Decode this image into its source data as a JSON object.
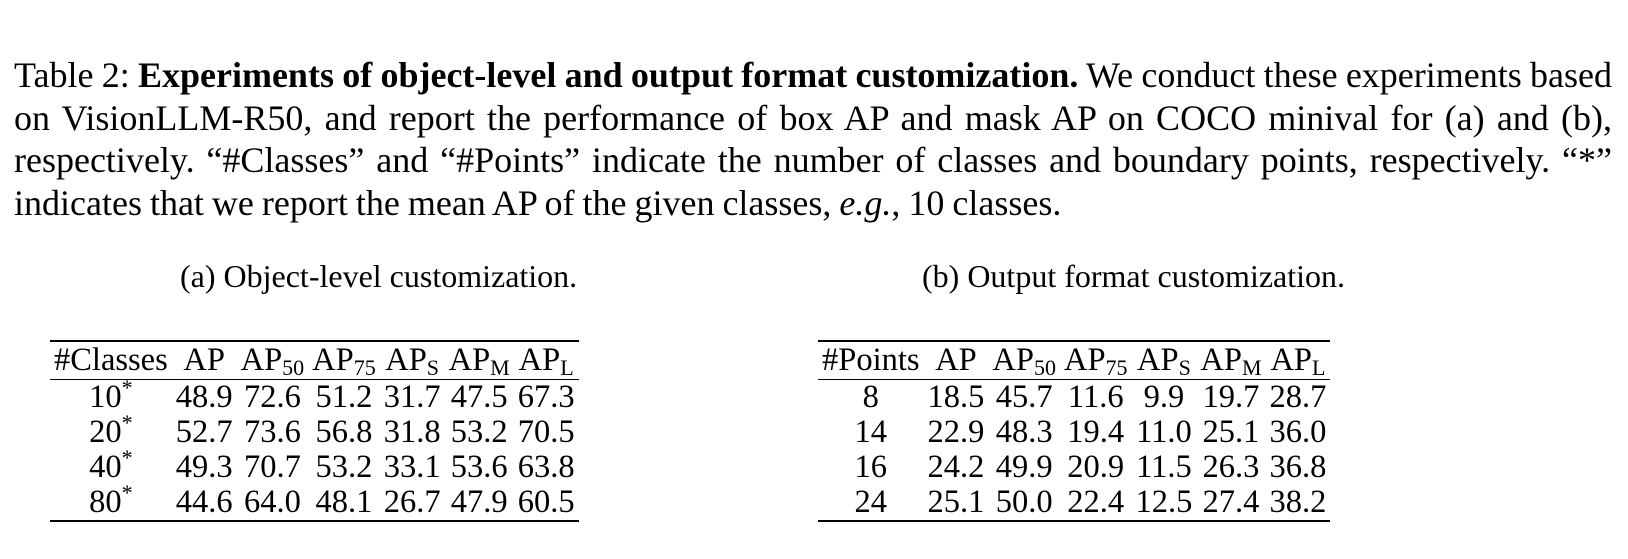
{
  "caption": {
    "label": "Table 2: ",
    "title": "Experiments of object-level and output format customization.",
    "text1": " We conduct these experiments based on VisionLLM-R50, and report the performance of box AP and mask AP on COCO minival for (a) and (b), respectively. “#Classes” and “#Points” indicate the number of classes and boundary points, respectively. “*” indicates that we report the mean AP of the given classes, ",
    "eg": "e.g.",
    "text2": ", 10 classes."
  },
  "table_a": {
    "subcaption": "(a) Object-level customization.",
    "headers": [
      {
        "base": "#Classes",
        "sub": ""
      },
      {
        "base": "AP",
        "sub": ""
      },
      {
        "base": "AP",
        "sub": "50"
      },
      {
        "base": "AP",
        "sub": "75"
      },
      {
        "base": "AP",
        "sub": "S"
      },
      {
        "base": "AP",
        "sub": "M"
      },
      {
        "base": "AP",
        "sub": "L"
      }
    ],
    "rows": [
      {
        "key": "10",
        "mark": "*",
        "values": [
          "48.9",
          "72.6",
          "51.2",
          "31.7",
          "47.5",
          "67.3"
        ]
      },
      {
        "key": "20",
        "mark": "*",
        "values": [
          "52.7",
          "73.6",
          "56.8",
          "31.8",
          "53.2",
          "70.5"
        ]
      },
      {
        "key": "40",
        "mark": "*",
        "values": [
          "49.3",
          "70.7",
          "53.2",
          "33.1",
          "53.6",
          "63.8"
        ]
      },
      {
        "key": "80",
        "mark": "*",
        "values": [
          "44.6",
          "64.0",
          "48.1",
          "26.7",
          "47.9",
          "60.5"
        ]
      }
    ]
  },
  "table_b": {
    "subcaption": "(b) Output format customization.",
    "headers": [
      {
        "base": "#Points",
        "sub": ""
      },
      {
        "base": "AP",
        "sub": ""
      },
      {
        "base": "AP",
        "sub": "50"
      },
      {
        "base": "AP",
        "sub": "75"
      },
      {
        "base": "AP",
        "sub": "S"
      },
      {
        "base": "AP",
        "sub": "M"
      },
      {
        "base": "AP",
        "sub": "L"
      }
    ],
    "rows": [
      {
        "key": "8",
        "mark": "",
        "values": [
          "18.5",
          "45.7",
          "11.6",
          "9.9",
          "19.7",
          "28.7"
        ]
      },
      {
        "key": "14",
        "mark": "",
        "values": [
          "22.9",
          "48.3",
          "19.4",
          "11.0",
          "25.1",
          "36.0"
        ]
      },
      {
        "key": "16",
        "mark": "",
        "values": [
          "24.2",
          "49.9",
          "20.9",
          "11.5",
          "26.3",
          "36.8"
        ]
      },
      {
        "key": "24",
        "mark": "",
        "values": [
          "25.1",
          "50.0",
          "22.4",
          "12.5",
          "27.4",
          "38.2"
        ]
      }
    ]
  }
}
